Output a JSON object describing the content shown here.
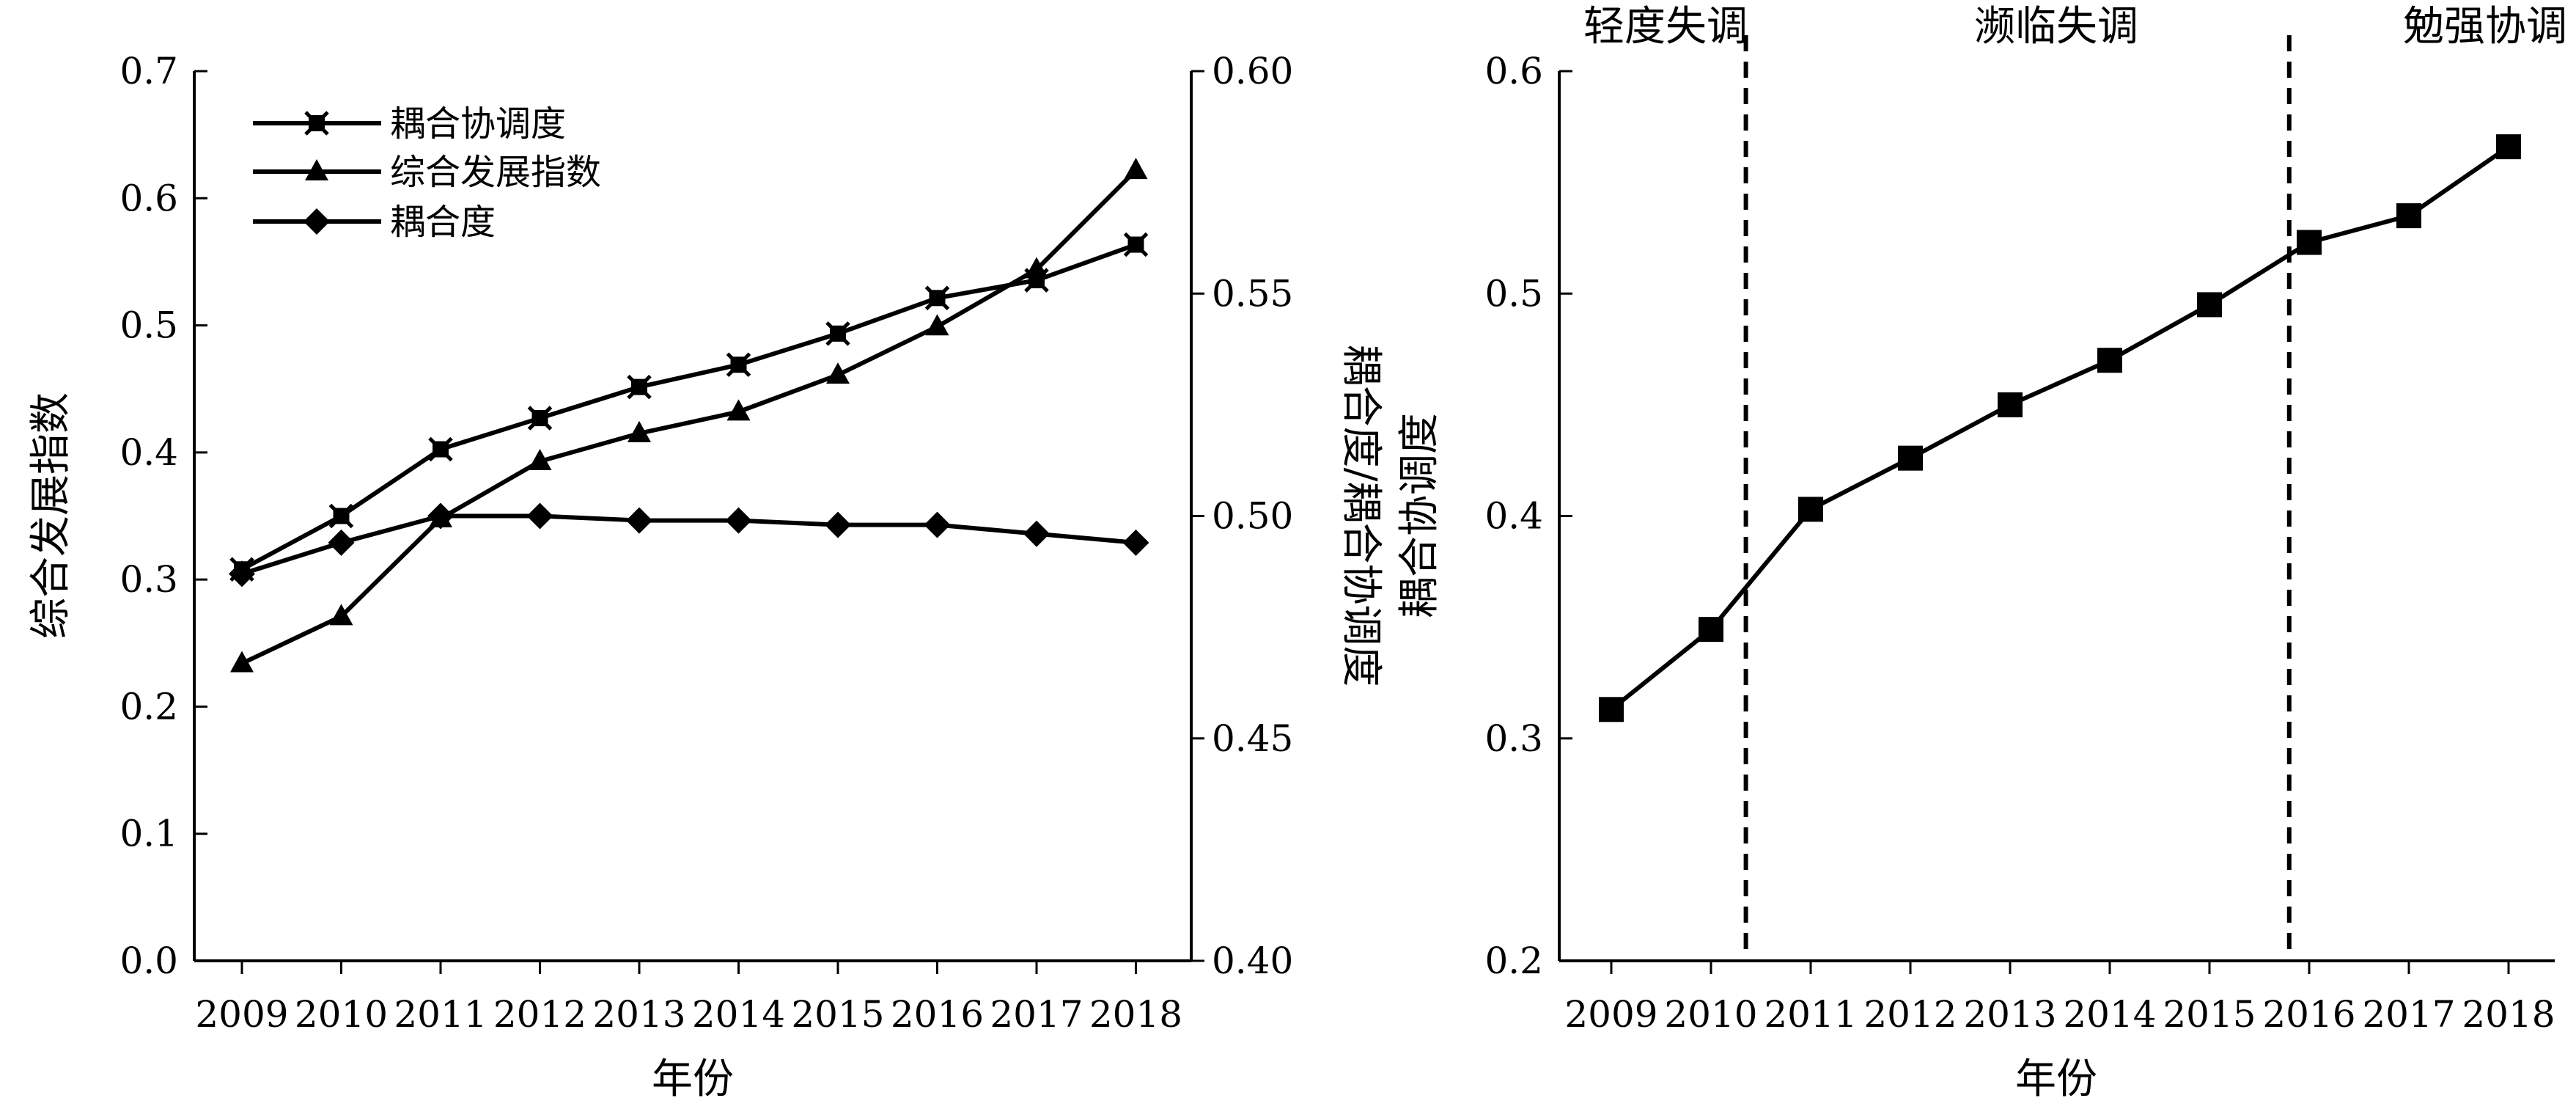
{
  "chart_data": [
    {
      "type": "line",
      "xlabel": "年份",
      "ylabel": "综合发展指数",
      "ylabel_right": "耦合度/耦合协调度",
      "x": [
        2009,
        2010,
        2011,
        2012,
        2013,
        2014,
        2015,
        2016,
        2017,
        2018
      ],
      "ylim": [
        0.0,
        0.7
      ],
      "ylim_right": [
        0.4,
        0.6
      ],
      "yticks": [
        "0.0",
        "0.1",
        "0.2",
        "0.3",
        "0.4",
        "0.5",
        "0.6",
        "0.7"
      ],
      "yticks_right": [
        "0.40",
        "0.45",
        "0.50",
        "0.55",
        "0.60"
      ],
      "grid": false,
      "legend_position": "top-left",
      "series": [
        {
          "name": "耦合协调度",
          "axis": "right",
          "marker": "x-square",
          "values": [
            0.488,
            0.5,
            0.515,
            0.522,
            0.529,
            0.534,
            0.541,
            0.549,
            0.553,
            0.561
          ]
        },
        {
          "name": "综合发展指数",
          "axis": "left",
          "marker": "triangle",
          "values": [
            0.234,
            0.271,
            0.348,
            0.393,
            0.415,
            0.432,
            0.461,
            0.499,
            0.544,
            0.622
          ]
        },
        {
          "name": "耦合度",
          "axis": "right",
          "marker": "diamond",
          "values": [
            0.487,
            0.494,
            0.5,
            0.5,
            0.499,
            0.499,
            0.498,
            0.498,
            0.496,
            0.494
          ]
        }
      ]
    },
    {
      "type": "line",
      "xlabel": "年份",
      "ylabel": "耦合协调度",
      "x": [
        2009,
        2010,
        2011,
        2012,
        2013,
        2014,
        2015,
        2016,
        2017,
        2018
      ],
      "ylim": [
        0.2,
        0.6
      ],
      "yticks": [
        "0.2",
        "0.3",
        "0.4",
        "0.5",
        "0.6"
      ],
      "grid": false,
      "series": [
        {
          "marker": "square",
          "values": [
            0.313,
            0.349,
            0.403,
            0.426,
            0.45,
            0.47,
            0.495,
            0.523,
            0.535,
            0.566
          ]
        }
      ],
      "dividers_x": [
        2010.35,
        2015.8
      ],
      "zones": [
        "轻度失调",
        "濒临失调",
        "勉强协调"
      ]
    }
  ]
}
